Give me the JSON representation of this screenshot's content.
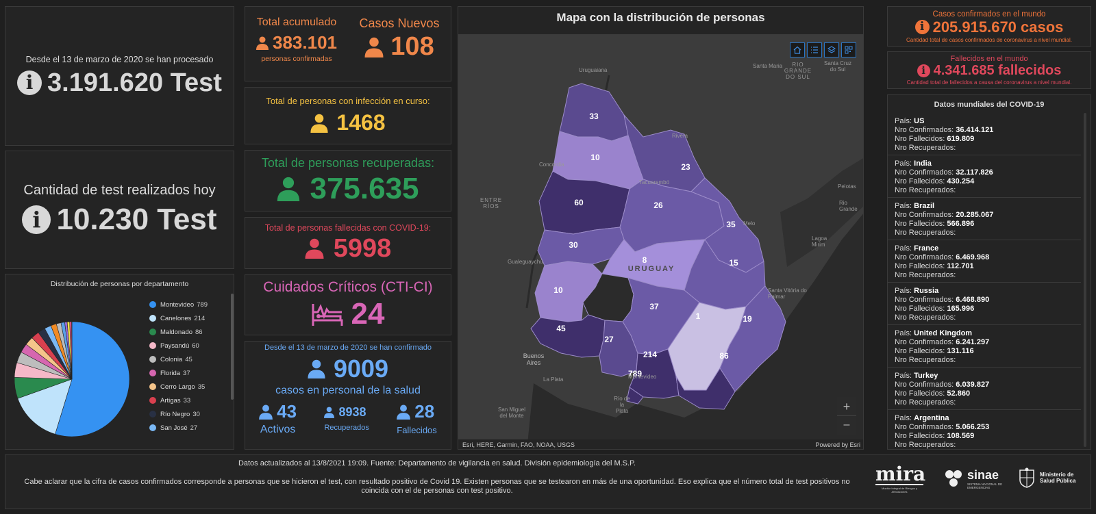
{
  "tests_total": {
    "label": "Desde el 13 de marzo de 2020 se han procesado",
    "value": "3.191.620 Test"
  },
  "tests_today": {
    "label": "Cantidad de test realizados hoy",
    "value": "10.230 Test"
  },
  "total_acumulado": {
    "title": "Total acumulado",
    "value": "383.101",
    "subtitle": "personas confirmadas"
  },
  "casos_nuevos": {
    "title": "Casos Nuevos",
    "value": "108"
  },
  "infeccion_curso": {
    "title": "Total de personas con infección en curso:",
    "value": "1468"
  },
  "recuperadas": {
    "title": "Total de personas recuperadas:",
    "value": "375.635"
  },
  "fallecidas": {
    "title": "Total de personas fallecidas con COVID-19:",
    "value": "5998"
  },
  "cti": {
    "title": "Cuidados Críticos (CTI-CI)",
    "value": "24"
  },
  "salud": {
    "title": "Desde el 13 de marzo de 2020 se han confirmado",
    "value": "9009",
    "subtitle": "casos en personal de la salud",
    "activos_value": "43",
    "activos_label": "Activos",
    "recuperados_value": "8938",
    "recuperados_label": "Recuperados",
    "fallecidos_value": "28",
    "fallecidos_label": "Fallecidos"
  },
  "pie": {
    "title": "Distribución de personas por departamento",
    "items": [
      {
        "name": "Montevideo",
        "value": 789,
        "color": "#3592f2"
      },
      {
        "name": "Canelones",
        "value": 214,
        "color": "#bfe3fb"
      },
      {
        "name": "Maldonado",
        "value": 86,
        "color": "#2a8a4e"
      },
      {
        "name": "Paysandú",
        "value": 60,
        "color": "#f5b8c8"
      },
      {
        "name": "Colonia",
        "value": 45,
        "color": "#bdbdbd"
      },
      {
        "name": "Florida",
        "value": 37,
        "color": "#d666b0"
      },
      {
        "name": "Cerro Largo",
        "value": 35,
        "color": "#f5c48a"
      },
      {
        "name": "Artigas",
        "value": 33,
        "color": "#d9404f"
      },
      {
        "name": "Río Negro",
        "value": 30,
        "color": "#283044"
      },
      {
        "name": "San José",
        "value": 27,
        "color": "#7ab8f5"
      }
    ],
    "hidden_slices": [
      {
        "value": 23,
        "color": "#f08a24"
      },
      {
        "value": 19,
        "color": "#bbbbbb"
      },
      {
        "value": 15,
        "color": "#5aa0e8"
      },
      {
        "value": 10,
        "color": "#9c6bd6"
      },
      {
        "value": 10,
        "color": "#f2e14a"
      },
      {
        "value": 8,
        "color": "#e05a8a"
      },
      {
        "value": 1,
        "color": "#4fc0b0"
      }
    ]
  },
  "map": {
    "title": "Mapa con la distribución de personas",
    "attribution": "Esri, HERE, Garmin, FAO, NOAA, USGS",
    "powered": "Powered by Esri",
    "country_label": "URUGUAY",
    "places": {
      "uruguaiana": "Uruguaiana",
      "santa_maria": "Santa Maria",
      "santa_cruz": "Santa Cruz do Sul",
      "rio_grande_sul": "RIO GRANDE DO SUL",
      "concordia": "Concordia",
      "rivera": "Rivera",
      "tacuarembo": "Tacuarembó",
      "entre_rios": "ENTRE RÍOS",
      "pelotas": "Pelotas",
      "rio_grande": "Rio Grande",
      "melo": "Melo",
      "lagoa_mirim": "Lagoa Mirim",
      "gualeguaychu": "Gualeguaychú",
      "santa_vitoria": "Santa Vitória do Palmar",
      "buenos_aires": "Buenos Aires",
      "la_plata": "La Plata",
      "montevideo": "Montevideo",
      "rio_plata": "Río de la Plata",
      "san_miguel": "San Miguel del Monte"
    },
    "zoom_in": "+",
    "zoom_out": "–",
    "departments": {
      "artigas": "33",
      "salto": "10",
      "rivera": "23",
      "paysandu": "60",
      "tacuarembo": "26",
      "cerro_largo": "35",
      "rio_negro": "30",
      "durazno": "8",
      "treinta_y_tres": "15",
      "soriano": "10",
      "flores": "",
      "florida": "37",
      "lavalleja": "1",
      "rocha": "19",
      "colonia": "45",
      "san_jose": "27",
      "canelones": "214",
      "maldonado": "86",
      "montevideo": "789"
    }
  },
  "world_confirmed": {
    "title": "Casos confirmados en el mundo",
    "value": "205.915.670 casos",
    "note": "Cantidad total de casos confirmados de coronavirus a nivel mundial."
  },
  "world_deaths": {
    "title": "Fallecidos en el mundo",
    "value": "4.341.685 fallecidos",
    "note": "Cantidad total de fallecidos a causa del coronavirus a nivel mundial."
  },
  "world_list": {
    "title": "Datos mundiales del COVID-19",
    "label_pais": "País:",
    "label_conf": "Nro Confirmados:",
    "label_fall": "Nro Fallecidos:",
    "label_rec": "Nro Recuperados:",
    "entries": [
      {
        "country": "US",
        "confirmed": "36.414.121",
        "deaths": "619.809"
      },
      {
        "country": "India",
        "confirmed": "32.117.826",
        "deaths": "430.254"
      },
      {
        "country": "Brazil",
        "confirmed": "20.285.067",
        "deaths": "566.896"
      },
      {
        "country": "France",
        "confirmed": "6.469.968",
        "deaths": "112.701"
      },
      {
        "country": "Russia",
        "confirmed": "6.468.890",
        "deaths": "165.996"
      },
      {
        "country": "United Kingdom",
        "confirmed": "6.241.297",
        "deaths": "131.116"
      },
      {
        "country": "Turkey",
        "confirmed": "6.039.827",
        "deaths": "52.860"
      },
      {
        "country": "Argentina",
        "confirmed": "5.066.253",
        "deaths": "108.569"
      }
    ]
  },
  "footer": {
    "line1": "Datos actualizados al 13/8/2021 19:09. Fuente: Departamento de vigilancia en salud. División epidemiología del M.S.P.",
    "line2": "Cabe aclarar que la cifra de casos confirmados corresponde a personas que se hicieron el test, con resultado positivo de Covid 19. Existen personas que se testearon en más de una oportunidad. Eso explica que el número total de test positivos no coincida con el de personas con test positivo.",
    "logo_mira": "mira",
    "logo_mira_sub": "Monitor Integral de Riesgos y Afectaciones",
    "logo_sinae": "sinae",
    "logo_sinae_sub": "SISTEMA NACIONAL DE EMERGENCIAS",
    "logo_msp": "Ministerio de Salud Pública"
  }
}
